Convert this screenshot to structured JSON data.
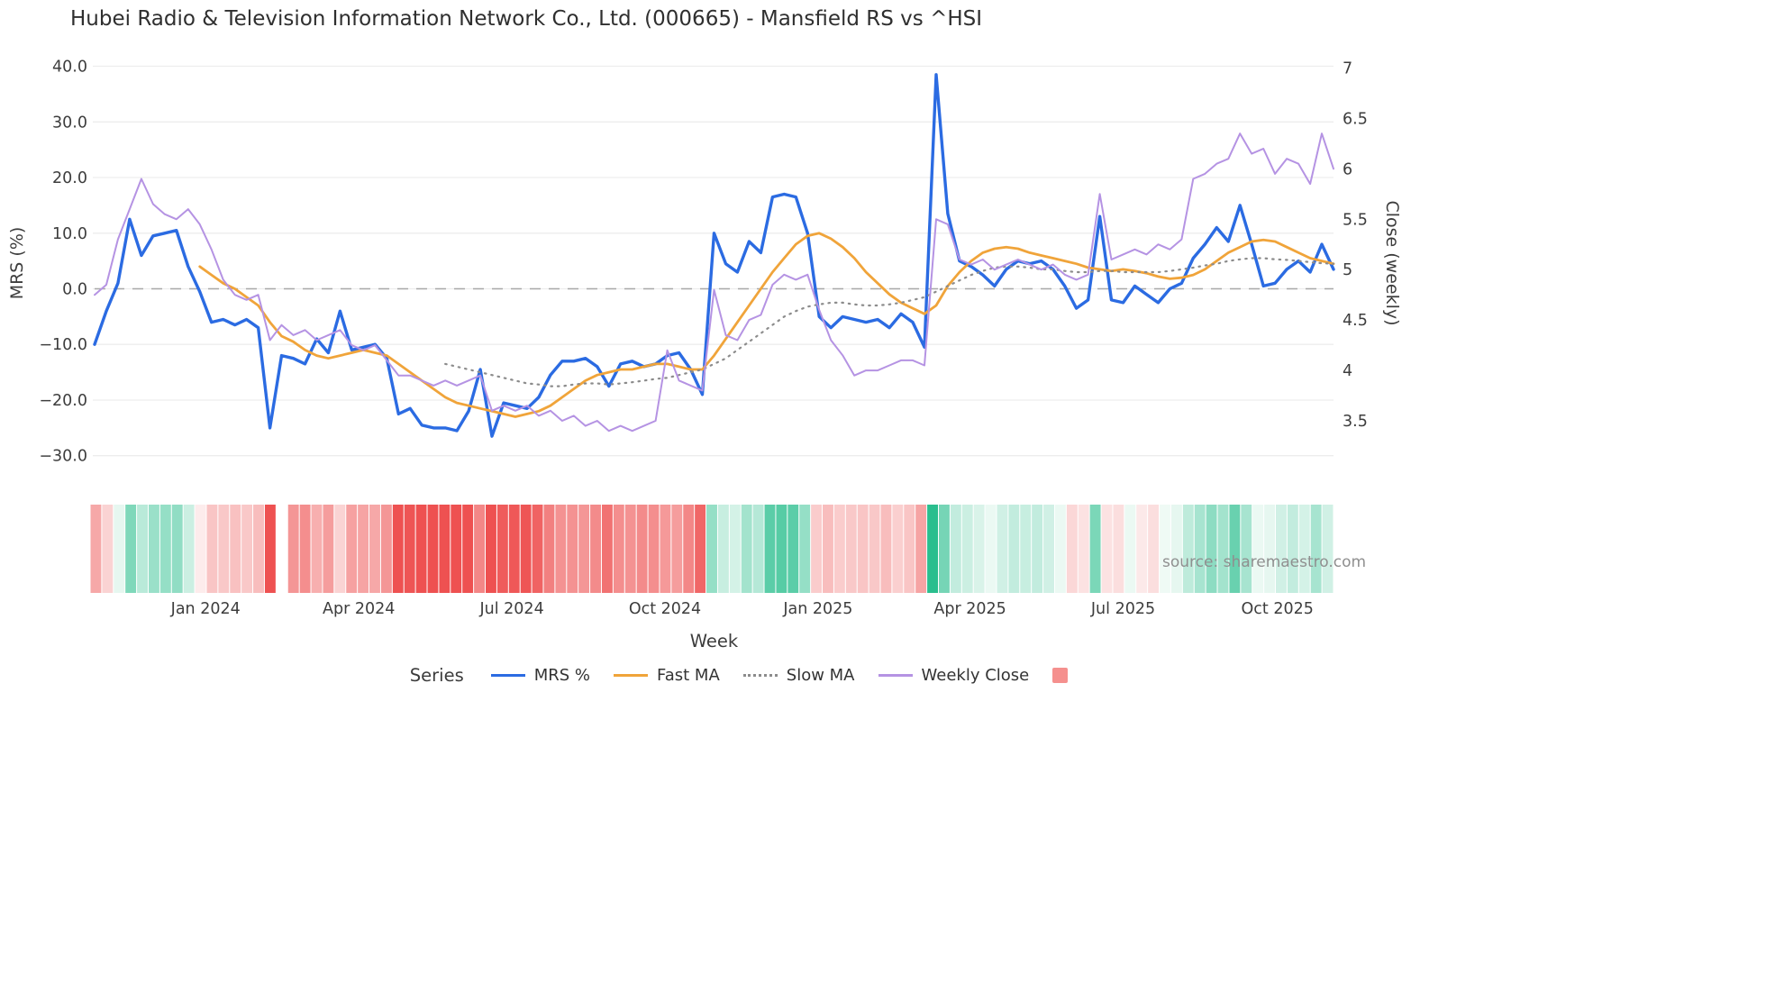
{
  "title": "Hubei Radio & Television Information Network Co., Ltd. (000665) - Mansfield RS vs ^HSI",
  "source": "source: sharemaestro.com",
  "axes": {
    "left_label": "MRS (%)",
    "right_label": "Close (weekly)",
    "x_label": "Week",
    "left_ticks": [
      "40.0",
      "30.0",
      "20.0",
      "10.0",
      "0.0",
      "−10.0",
      "−20.0",
      "−30.0"
    ],
    "left_tick_values": [
      40,
      30,
      20,
      10,
      0,
      -10,
      -20,
      -30
    ],
    "right_ticks": [
      "7",
      "6.5",
      "6",
      "5.5",
      "5",
      "4.5",
      "4",
      "3.5"
    ],
    "right_tick_values": [
      7,
      6.5,
      6,
      5.5,
      5,
      4.5,
      4,
      3.5
    ],
    "x_ticks": [
      "Jan 2024",
      "Apr 2024",
      "Jul 2024",
      "Oct 2024",
      "Jan 2025",
      "Apr 2025",
      "Jul 2025",
      "Oct 2025"
    ]
  },
  "legend": {
    "title": "Series",
    "items": [
      {
        "label": "MRS %"
      },
      {
        "label": "Fast MA"
      },
      {
        "label": "Slow MA"
      },
      {
        "label": "Weekly Close"
      }
    ],
    "swatch_color": "#f5908e"
  },
  "chart_data": {
    "type": "line",
    "title": "Hubei Radio & Television Information Network Co., Ltd. (000665) - Mansfield RS vs ^HSI",
    "xlabel": "Week",
    "ylabel_left": "MRS (%)",
    "ylabel_right": "Close (weekly)",
    "x_unit": "weekly index, late Oct 2023 through Nov 2025",
    "n_points": 107,
    "ylim_left": [
      -31.5,
      43
    ],
    "ylim_right": [
      3.071,
      7.183
    ],
    "grid": true,
    "legend_position": "bottom",
    "zero_line_value": 0,
    "x_tick_weeks": [
      9.5,
      22.6,
      35.7,
      48.8,
      61.9,
      74.9,
      88.0,
      101.2
    ],
    "series": [
      {
        "name": "MRS %",
        "axis": "left",
        "color": "#2b6be2",
        "width": 3.4,
        "dash": null,
        "start_index": 0,
        "values": [
          -10,
          -4,
          1,
          12.5,
          6,
          9.5,
          10,
          10.5,
          4,
          -0.5,
          -6,
          -5.5,
          -6.5,
          -5.5,
          -7,
          -25,
          -12,
          -12.5,
          -13.5,
          -9,
          -11.5,
          -4,
          -11,
          -10.5,
          -10,
          -12.5,
          -22.5,
          -21.5,
          -24.5,
          -25,
          -25,
          -25.5,
          -22,
          -14.5,
          -26.5,
          -20.5,
          -21,
          -21.5,
          -19.5,
          -15.5,
          -13,
          -13,
          -12.5,
          -14,
          -17.5,
          -13.5,
          -13,
          -14,
          -13.5,
          -12,
          -11.5,
          -14.5,
          -19,
          10,
          4.5,
          3,
          8.5,
          6.5,
          16.5,
          17,
          16.5,
          10,
          -5,
          -7,
          -5,
          -5.5,
          -6,
          -5.5,
          -7,
          -4.5,
          -6,
          -10.5,
          38.5,
          13.5,
          5,
          4,
          2.5,
          0.5,
          3.5,
          5,
          4.5,
          5,
          3.5,
          0.5,
          -3.5,
          -2,
          13,
          -2,
          -2.5,
          0.5,
          -1,
          -2.5,
          0,
          1,
          5.5,
          8,
          11,
          8.5,
          15,
          8,
          0.5,
          1,
          3.5,
          5,
          3,
          8,
          3.5
        ]
      },
      {
        "name": "Fast MA",
        "axis": "left",
        "color": "#f0a43a",
        "width": 2.8,
        "dash": null,
        "start_index": 9,
        "values": [
          4,
          2.5,
          1,
          0,
          -1.5,
          -3,
          -6,
          -8.5,
          -9.5,
          -11,
          -12,
          -12.5,
          -12,
          -11.5,
          -11,
          -11.5,
          -12,
          -13.5,
          -15,
          -16.5,
          -18,
          -19.5,
          -20.5,
          -21,
          -21.5,
          -22,
          -22.5,
          -23,
          -22.5,
          -22,
          -21,
          -19.5,
          -18,
          -16.5,
          -15.5,
          -15,
          -14.5,
          -14.5,
          -14,
          -13.5,
          -13.5,
          -14,
          -14.5,
          -14.5,
          -12,
          -9,
          -6,
          -3,
          0,
          3,
          5.5,
          8,
          9.5,
          10,
          9,
          7.5,
          5.5,
          3,
          1,
          -1,
          -2.5,
          -3.5,
          -4.5,
          -3,
          0.5,
          3,
          5,
          6.5,
          7.2,
          7.5,
          7.2,
          6.5,
          6,
          5.5,
          5,
          4.5,
          3.8,
          3.5,
          3.2,
          3.5,
          3.2,
          2.8,
          2.2,
          1.8,
          2,
          2.5,
          3.5,
          5,
          6.5,
          7.5,
          8.5,
          8.8,
          8.5,
          7.5,
          6.5,
          5.5,
          5,
          4.5
        ]
      },
      {
        "name": "Slow MA",
        "axis": "left",
        "color": "#8c8c8c",
        "width": 2.2,
        "dash": "1.5 6",
        "start_index": 30,
        "values": [
          -13.5,
          -14,
          -14.5,
          -15,
          -15.5,
          -16,
          -16.5,
          -17,
          -17.2,
          -17.5,
          -17.5,
          -17.2,
          -17,
          -17,
          -17.2,
          -17,
          -16.8,
          -16.5,
          -16.2,
          -16,
          -15.5,
          -15,
          -14.5,
          -13.5,
          -12.5,
          -11,
          -9.5,
          -8,
          -6.5,
          -5,
          -4,
          -3.2,
          -2.8,
          -2.5,
          -2.5,
          -2.8,
          -3,
          -3,
          -2.8,
          -2.5,
          -2,
          -1.5,
          -0.5,
          0.5,
          1.5,
          2.5,
          3.2,
          3.8,
          4,
          4,
          3.8,
          3.5,
          3.5,
          3.2,
          3,
          3,
          3.2,
          3.2,
          3,
          3,
          3,
          3,
          3.2,
          3.5,
          3.8,
          4.2,
          4.5,
          5,
          5.3,
          5.5,
          5.5,
          5.3,
          5.2,
          5,
          4.8,
          4.6,
          4.5
        ]
      },
      {
        "name": "Weekly Close",
        "axis": "right",
        "color": "#b593e3",
        "width": 2,
        "dash": null,
        "start_index": 0,
        "values": [
          4.75,
          4.85,
          5.3,
          5.6,
          5.9,
          5.65,
          5.55,
          5.5,
          5.6,
          5.45,
          5.2,
          4.9,
          4.75,
          4.7,
          4.75,
          4.3,
          4.45,
          4.35,
          4.4,
          4.3,
          4.35,
          4.4,
          4.25,
          4.2,
          4.25,
          4.1,
          3.95,
          3.95,
          3.9,
          3.85,
          3.9,
          3.85,
          3.9,
          3.95,
          3.6,
          3.65,
          3.6,
          3.65,
          3.55,
          3.6,
          3.5,
          3.55,
          3.45,
          3.5,
          3.4,
          3.45,
          3.4,
          3.45,
          3.5,
          4.2,
          3.9,
          3.85,
          3.8,
          4.8,
          4.35,
          4.3,
          4.5,
          4.55,
          4.85,
          4.95,
          4.9,
          4.95,
          4.6,
          4.3,
          4.15,
          3.95,
          4.0,
          4.0,
          4.05,
          4.1,
          4.1,
          4.05,
          5.5,
          5.45,
          5.1,
          5.05,
          5.1,
          5.0,
          5.05,
          5.1,
          5.05,
          5.0,
          5.05,
          4.95,
          4.9,
          4.95,
          5.75,
          5.1,
          5.15,
          5.2,
          5.15,
          5.25,
          5.2,
          5.3,
          5.9,
          5.95,
          6.05,
          6.1,
          6.35,
          6.15,
          6.2,
          5.95,
          6.1,
          6.05,
          5.85,
          6.35,
          6.0
        ]
      }
    ],
    "heatmap": {
      "derived_from": "MRS %",
      "strong_negative": "#ee5151",
      "light_negative": "#fdf0f0",
      "strong_positive": "#2abe8e",
      "light_positive": "#effaf5",
      "max_abs": 22,
      "gap_indices": [
        16
      ]
    }
  }
}
